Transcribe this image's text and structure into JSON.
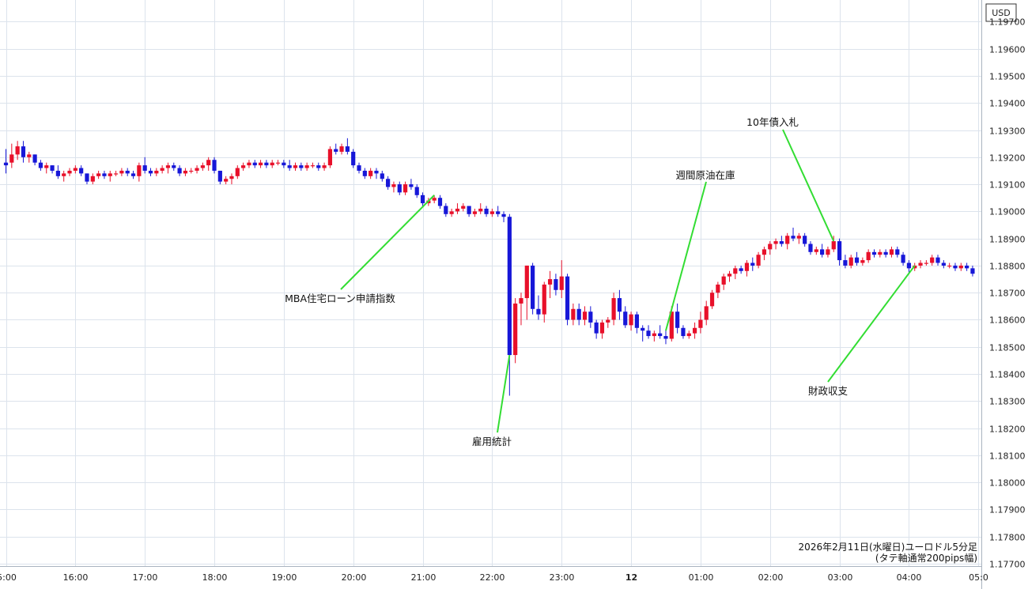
{
  "chart_data": {
    "type": "candlestick",
    "currency_label": "USD",
    "caption_line1": "2026年2月11日(水曜日)ユーロドル5分足",
    "caption_line2": "(タテ軸通常200pips幅)",
    "ylim": [
      1.177,
      1.1978
    ],
    "y_ticks": [
      "1.17700",
      "1.17800",
      "1.17900",
      "1.18000",
      "1.18100",
      "1.18200",
      "1.18300",
      "1.18400",
      "1.18500",
      "1.18600",
      "1.18700",
      "1.18800",
      "1.18900",
      "1.19000",
      "1.19100",
      "1.19200",
      "1.19300",
      "1.19400",
      "1.19500",
      "1.19600",
      "1.19700"
    ],
    "x_ticks": [
      {
        "label": "5:00",
        "bar": 0,
        "bold": false
      },
      {
        "label": "16:00",
        "bar": 12,
        "bold": false
      },
      {
        "label": "17:00",
        "bar": 24,
        "bold": false
      },
      {
        "label": "18:00",
        "bar": 36,
        "bold": false
      },
      {
        "label": "19:00",
        "bar": 48,
        "bold": false
      },
      {
        "label": "20:00",
        "bar": 60,
        "bold": false
      },
      {
        "label": "21:00",
        "bar": 72,
        "bold": false
      },
      {
        "label": "22:00",
        "bar": 84,
        "bold": false
      },
      {
        "label": "23:00",
        "bar": 96,
        "bold": false
      },
      {
        "label": "12",
        "bar": 108,
        "bold": true
      },
      {
        "label": "01:00",
        "bar": 120,
        "bold": false
      },
      {
        "label": "02:00",
        "bar": 132,
        "bold": false
      },
      {
        "label": "03:00",
        "bar": 144,
        "bold": false
      },
      {
        "label": "04:00",
        "bar": 156,
        "bold": false
      },
      {
        "label": "05:0",
        "bar": 168,
        "bold": false
      }
    ],
    "colors": {
      "up": "#e8102a",
      "down": "#1717d8",
      "grid": "#dce3ec",
      "annotation_line": "#33dd33"
    },
    "candles": [
      [
        1.1918,
        1.1923,
        1.1914,
        1.1917
      ],
      [
        1.1918,
        1.1925,
        1.1916,
        1.1921
      ],
      [
        1.1921,
        1.1926,
        1.1919,
        1.1924
      ],
      [
        1.1924,
        1.1926,
        1.1918,
        1.192
      ],
      [
        1.192,
        1.1922,
        1.1918,
        1.1921
      ],
      [
        1.1921,
        1.1921,
        1.1917,
        1.1918
      ],
      [
        1.1918,
        1.1919,
        1.1915,
        1.1916
      ],
      [
        1.1916,
        1.1918,
        1.1914,
        1.1917
      ],
      [
        1.1917,
        1.1917,
        1.1914,
        1.1915
      ],
      [
        1.1915,
        1.1917,
        1.1912,
        1.1913
      ],
      [
        1.1913,
        1.1915,
        1.1911,
        1.1914
      ],
      [
        1.1914,
        1.1916,
        1.1913,
        1.1915
      ],
      [
        1.1915,
        1.1917,
        1.1914,
        1.1916
      ],
      [
        1.1916,
        1.1917,
        1.1913,
        1.1914
      ],
      [
        1.1914,
        1.1914,
        1.191,
        1.1911
      ],
      [
        1.1911,
        1.1914,
        1.191,
        1.1913
      ],
      [
        1.1913,
        1.1915,
        1.1912,
        1.1914
      ],
      [
        1.1914,
        1.1915,
        1.1912,
        1.1913
      ],
      [
        1.1913,
        1.1915,
        1.1911,
        1.1914
      ],
      [
        1.1914,
        1.1915,
        1.1913,
        1.1914
      ],
      [
        1.1914,
        1.1916,
        1.1913,
        1.1915
      ],
      [
        1.1915,
        1.1916,
        1.1913,
        1.1914
      ],
      [
        1.1914,
        1.1915,
        1.1912,
        1.1913
      ],
      [
        1.1913,
        1.1918,
        1.1911,
        1.1917
      ],
      [
        1.1917,
        1.192,
        1.1914,
        1.1915
      ],
      [
        1.1915,
        1.1916,
        1.1913,
        1.1914
      ],
      [
        1.1914,
        1.1916,
        1.1913,
        1.1915
      ],
      [
        1.1915,
        1.1917,
        1.1914,
        1.1916
      ],
      [
        1.1916,
        1.1918,
        1.1914,
        1.1917
      ],
      [
        1.1917,
        1.1918,
        1.1915,
        1.1916
      ],
      [
        1.1916,
        1.1917,
        1.1913,
        1.1914
      ],
      [
        1.1914,
        1.1916,
        1.1913,
        1.1915
      ],
      [
        1.1915,
        1.1916,
        1.1914,
        1.1915
      ],
      [
        1.1915,
        1.1917,
        1.1914,
        1.1916
      ],
      [
        1.1916,
        1.1918,
        1.1915,
        1.1917
      ],
      [
        1.1917,
        1.192,
        1.1915,
        1.1919
      ],
      [
        1.1919,
        1.192,
        1.1914,
        1.1915
      ],
      [
        1.1915,
        1.1915,
        1.191,
        1.1911
      ],
      [
        1.1911,
        1.1913,
        1.191,
        1.1912
      ],
      [
        1.1912,
        1.1914,
        1.191,
        1.1913
      ],
      [
        1.1913,
        1.1917,
        1.1912,
        1.1916
      ],
      [
        1.1916,
        1.1918,
        1.1915,
        1.1917
      ],
      [
        1.1917,
        1.1919,
        1.1916,
        1.1918
      ],
      [
        1.1918,
        1.1919,
        1.1916,
        1.1917
      ],
      [
        1.1917,
        1.1919,
        1.1916,
        1.1918
      ],
      [
        1.1918,
        1.1919,
        1.1916,
        1.1917
      ],
      [
        1.1917,
        1.1919,
        1.1916,
        1.1918
      ],
      [
        1.1918,
        1.1919,
        1.1917,
        1.1918
      ],
      [
        1.1918,
        1.1919,
        1.1916,
        1.1917
      ],
      [
        1.1917,
        1.1919,
        1.1915,
        1.1916
      ],
      [
        1.1916,
        1.1918,
        1.1915,
        1.1917
      ],
      [
        1.1917,
        1.1918,
        1.1915,
        1.1916
      ],
      [
        1.1916,
        1.1918,
        1.1915,
        1.1917
      ],
      [
        1.1917,
        1.1918,
        1.1916,
        1.1917
      ],
      [
        1.1917,
        1.1918,
        1.1915,
        1.1916
      ],
      [
        1.1916,
        1.1918,
        1.1915,
        1.1917
      ],
      [
        1.1917,
        1.1924,
        1.1916,
        1.1923
      ],
      [
        1.1923,
        1.1925,
        1.1921,
        1.1922
      ],
      [
        1.1922,
        1.1925,
        1.1921,
        1.1924
      ],
      [
        1.1924,
        1.1927,
        1.1921,
        1.1922
      ],
      [
        1.1922,
        1.1923,
        1.1916,
        1.1917
      ],
      [
        1.1917,
        1.1918,
        1.1914,
        1.1915
      ],
      [
        1.1915,
        1.1916,
        1.1912,
        1.1913
      ],
      [
        1.1913,
        1.1916,
        1.1912,
        1.1915
      ],
      [
        1.1915,
        1.1916,
        1.1912,
        1.1914
      ],
      [
        1.1914,
        1.1915,
        1.1911,
        1.1912
      ],
      [
        1.1912,
        1.1913,
        1.1908,
        1.1909
      ],
      [
        1.1909,
        1.1911,
        1.1907,
        1.191
      ],
      [
        1.191,
        1.1911,
        1.1906,
        1.1907
      ],
      [
        1.1907,
        1.1911,
        1.1906,
        1.191
      ],
      [
        1.191,
        1.1912,
        1.1908,
        1.1909
      ],
      [
        1.1909,
        1.191,
        1.1905,
        1.1906
      ],
      [
        1.1906,
        1.1907,
        1.1902,
        1.1903
      ],
      [
        1.1903,
        1.1905,
        1.1902,
        1.1904
      ],
      [
        1.1904,
        1.1906,
        1.1903,
        1.1905
      ],
      [
        1.1905,
        1.1906,
        1.1901,
        1.1902
      ],
      [
        1.1902,
        1.1903,
        1.1898,
        1.1899
      ],
      [
        1.1899,
        1.1901,
        1.1898,
        1.19
      ],
      [
        1.19,
        1.1903,
        1.1899,
        1.1901
      ],
      [
        1.1901,
        1.1903,
        1.19,
        1.1902
      ],
      [
        1.1902,
        1.1902,
        1.1898,
        1.1899
      ],
      [
        1.1899,
        1.1901,
        1.1898,
        1.19
      ],
      [
        1.19,
        1.1903,
        1.1899,
        1.1901
      ],
      [
        1.1901,
        1.1902,
        1.1898,
        1.1899
      ],
      [
        1.1899,
        1.1901,
        1.1898,
        1.19
      ],
      [
        1.19,
        1.1902,
        1.1898,
        1.1899
      ],
      [
        1.1899,
        1.19,
        1.1896,
        1.1898
      ],
      [
        1.1898,
        1.1899,
        1.1832,
        1.1847
      ],
      [
        1.1847,
        1.1868,
        1.1844,
        1.1866
      ],
      [
        1.1866,
        1.187,
        1.1858,
        1.1868
      ],
      [
        1.1868,
        1.188,
        1.186,
        1.188
      ],
      [
        1.188,
        1.1881,
        1.1862,
        1.1864
      ],
      [
        1.1864,
        1.1869,
        1.186,
        1.1862
      ],
      [
        1.1862,
        1.1874,
        1.1859,
        1.1873
      ],
      [
        1.1873,
        1.1878,
        1.1868,
        1.1875
      ],
      [
        1.1875,
        1.1877,
        1.1869,
        1.1871
      ],
      [
        1.1871,
        1.1882,
        1.1868,
        1.1876
      ],
      [
        1.1876,
        1.1877,
        1.1858,
        1.186
      ],
      [
        1.186,
        1.1866,
        1.1858,
        1.1864
      ],
      [
        1.1864,
        1.1866,
        1.1858,
        1.186
      ],
      [
        1.186,
        1.1865,
        1.1858,
        1.1863
      ],
      [
        1.1863,
        1.1865,
        1.1857,
        1.1859
      ],
      [
        1.1859,
        1.186,
        1.1853,
        1.1855
      ],
      [
        1.1855,
        1.186,
        1.1853,
        1.1859
      ],
      [
        1.1859,
        1.1861,
        1.1857,
        1.186
      ],
      [
        1.186,
        1.187,
        1.1858,
        1.1868
      ],
      [
        1.1868,
        1.1871,
        1.186,
        1.1863
      ],
      [
        1.1863,
        1.1865,
        1.1857,
        1.1858
      ],
      [
        1.1858,
        1.1863,
        1.1856,
        1.1862
      ],
      [
        1.1862,
        1.1863,
        1.1855,
        1.1857
      ],
      [
        1.1857,
        1.1858,
        1.1852,
        1.1856
      ],
      [
        1.1856,
        1.1858,
        1.1853,
        1.1854
      ],
      [
        1.1854,
        1.1856,
        1.1852,
        1.1855
      ],
      [
        1.1855,
        1.1858,
        1.1853,
        1.1854
      ],
      [
        1.1854,
        1.1856,
        1.1851,
        1.1853
      ],
      [
        1.1853,
        1.1865,
        1.1852,
        1.1863
      ],
      [
        1.1863,
        1.1866,
        1.1855,
        1.1857
      ],
      [
        1.1857,
        1.1858,
        1.1853,
        1.1854
      ],
      [
        1.1854,
        1.1856,
        1.1853,
        1.1855
      ],
      [
        1.1855,
        1.1859,
        1.1853,
        1.1857
      ],
      [
        1.1857,
        1.1863,
        1.1855,
        1.186
      ],
      [
        1.186,
        1.1867,
        1.1858,
        1.1865
      ],
      [
        1.1865,
        1.1871,
        1.1864,
        1.187
      ],
      [
        1.187,
        1.1874,
        1.1868,
        1.1873
      ],
      [
        1.1873,
        1.1877,
        1.1871,
        1.1876
      ],
      [
        1.1876,
        1.1878,
        1.1874,
        1.1877
      ],
      [
        1.1877,
        1.188,
        1.1875,
        1.1879
      ],
      [
        1.1879,
        1.188,
        1.1877,
        1.1878
      ],
      [
        1.1878,
        1.1882,
        1.1876,
        1.1881
      ],
      [
        1.1881,
        1.1883,
        1.1878,
        1.188
      ],
      [
        1.188,
        1.1885,
        1.1879,
        1.1884
      ],
      [
        1.1884,
        1.1887,
        1.1882,
        1.1886
      ],
      [
        1.1886,
        1.1889,
        1.1884,
        1.1888
      ],
      [
        1.1888,
        1.189,
        1.1886,
        1.1889
      ],
      [
        1.1889,
        1.1891,
        1.1887,
        1.1888
      ],
      [
        1.1888,
        1.1892,
        1.1886,
        1.1891
      ],
      [
        1.1891,
        1.1894,
        1.1889,
        1.189
      ],
      [
        1.189,
        1.1892,
        1.1888,
        1.1891
      ],
      [
        1.1891,
        1.1892,
        1.1887,
        1.1888
      ],
      [
        1.1888,
        1.1889,
        1.1884,
        1.1885
      ],
      [
        1.1885,
        1.1887,
        1.1884,
        1.1886
      ],
      [
        1.1886,
        1.1888,
        1.1883,
        1.1884
      ],
      [
        1.1884,
        1.1887,
        1.1883,
        1.1886
      ],
      [
        1.1886,
        1.1891,
        1.1885,
        1.1889
      ],
      [
        1.1889,
        1.189,
        1.188,
        1.1882
      ],
      [
        1.1882,
        1.1884,
        1.1879,
        1.188
      ],
      [
        1.188,
        1.1884,
        1.1879,
        1.1883
      ],
      [
        1.1883,
        1.1885,
        1.188,
        1.1881
      ],
      [
        1.1881,
        1.1883,
        1.188,
        1.1882
      ],
      [
        1.1882,
        1.1886,
        1.1881,
        1.1885
      ],
      [
        1.1885,
        1.1886,
        1.1883,
        1.1884
      ],
      [
        1.1884,
        1.1886,
        1.1883,
        1.1885
      ],
      [
        1.1885,
        1.1886,
        1.1883,
        1.1884
      ],
      [
        1.1884,
        1.1887,
        1.1883,
        1.1886
      ],
      [
        1.1886,
        1.1887,
        1.1883,
        1.1884
      ],
      [
        1.1884,
        1.1885,
        1.188,
        1.1881
      ],
      [
        1.1881,
        1.1882,
        1.1877,
        1.1879
      ],
      [
        1.1879,
        1.1881,
        1.1878,
        1.188
      ],
      [
        1.188,
        1.1882,
        1.1879,
        1.1881
      ],
      [
        1.1881,
        1.1882,
        1.188,
        1.1881
      ],
      [
        1.1881,
        1.1884,
        1.188,
        1.1883
      ],
      [
        1.1883,
        1.1884,
        1.188,
        1.1881
      ],
      [
        1.1881,
        1.1882,
        1.1879,
        1.188
      ],
      [
        1.188,
        1.1881,
        1.1879,
        1.188
      ],
      [
        1.188,
        1.1881,
        1.1878,
        1.1879
      ],
      [
        1.1879,
        1.1881,
        1.1878,
        1.188
      ],
      [
        1.188,
        1.1881,
        1.1878,
        1.1879
      ],
      [
        1.1879,
        1.188,
        1.1876,
        1.1877
      ]
    ],
    "annotations": [
      {
        "label": "MBA住宅ローン申請指数",
        "bar": 74,
        "price": 1.1906
      },
      {
        "label": "雇用統計",
        "bar": 87,
        "price": 1.1847
      },
      {
        "label": "週間原油在庫",
        "bar": 114,
        "price": 1.1856
      },
      {
        "label": "10年債入札",
        "bar": 143,
        "price": 1.1889
      },
      {
        "label": "財政収支",
        "bar": 157,
        "price": 1.188
      }
    ]
  }
}
